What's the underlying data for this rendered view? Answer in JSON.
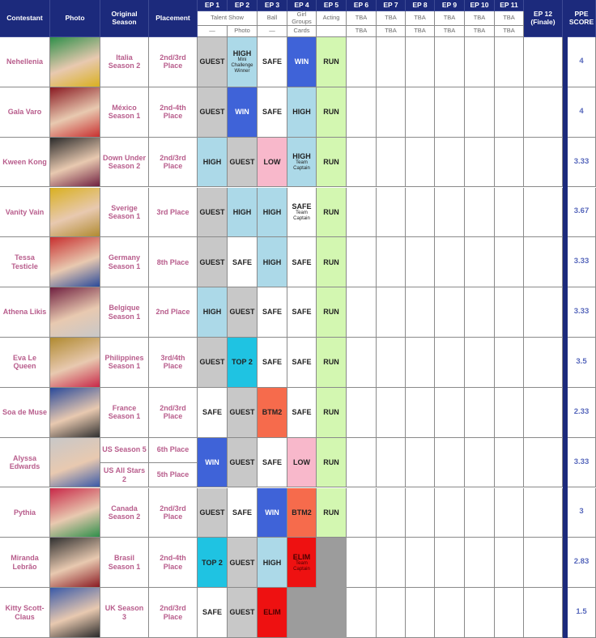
{
  "header": {
    "contestant": "Contestant",
    "photo": "Photo",
    "original_season": "Original Season",
    "placement": "Placement",
    "finale": "EP 12 (Finale)",
    "score": "PPE SCORE",
    "theme_groups": [
      {
        "theme": "Talent Show",
        "episodes": [
          {
            "label": "EP 1",
            "subtheme": "—"
          },
          {
            "label": "EP 2",
            "subtheme": "Photo"
          }
        ]
      },
      {
        "theme": "Ball",
        "episodes": [
          {
            "label": "EP 3",
            "subtheme": "—"
          }
        ]
      },
      {
        "theme": "Girl Groups",
        "episodes": [
          {
            "label": "EP 4",
            "subtheme": "Cards"
          }
        ]
      },
      {
        "theme": "Acting",
        "episodes": [
          {
            "label": "EP 5"
          }
        ]
      },
      {
        "theme": "TBA",
        "episodes": [
          {
            "label": "EP 6",
            "subtheme": "TBA"
          }
        ]
      },
      {
        "theme": "TBA",
        "episodes": [
          {
            "label": "EP 7",
            "subtheme": "TBA"
          }
        ]
      },
      {
        "theme": "TBA",
        "episodes": [
          {
            "label": "EP 8",
            "subtheme": "TBA"
          }
        ]
      },
      {
        "theme": "TBA",
        "episodes": [
          {
            "label": "EP 9",
            "subtheme": "TBA"
          }
        ]
      },
      {
        "theme": "TBA",
        "episodes": [
          {
            "label": "EP 10",
            "subtheme": "TBA"
          }
        ]
      },
      {
        "theme": "TBA",
        "episodes": [
          {
            "label": "EP 11",
            "subtheme": "TBA"
          }
        ]
      }
    ]
  },
  "result_styles": {
    "GUEST": {
      "fill": "#c8c8c8",
      "text": "#222222"
    },
    "HIGH": {
      "fill": "#acd9e8",
      "text": "#222222"
    },
    "WIN": {
      "fill": "#3f63d8",
      "text": "#ffffff"
    },
    "SAFE": {
      "fill": "#ffffff",
      "text": "#222222"
    },
    "LOW": {
      "fill": "#f8b8cb",
      "text": "#222222"
    },
    "BTM2": {
      "fill": "#f66b4c",
      "text": "#222222"
    },
    "TOP 2": {
      "fill": "#1fc3e2",
      "text": "#222222"
    },
    "ELIM": {
      "fill": "#ee1111",
      "text": "#4a0000"
    },
    "RUN": {
      "fill": "#d3f7b1",
      "text": "#222222"
    }
  },
  "eliminated_fill": "#9c9c9c",
  "contestants": [
    {
      "name": "Nehellenia",
      "seasons": [
        {
          "season": "Italia Season 2",
          "placement": "2nd/3rd Place"
        }
      ],
      "results": [
        {
          "result": "GUEST"
        },
        {
          "result": "HIGH",
          "note": "Mini Challenge Winner"
        },
        {
          "result": "SAFE"
        },
        {
          "result": "WIN"
        },
        {
          "result": "RUN"
        }
      ],
      "score": 4
    },
    {
      "name": "Gala Varo",
      "seasons": [
        {
          "season": "México Season 1",
          "placement": "2nd-4th Place"
        }
      ],
      "results": [
        {
          "result": "GUEST"
        },
        {
          "result": "WIN"
        },
        {
          "result": "SAFE"
        },
        {
          "result": "HIGH"
        },
        {
          "result": "RUN"
        }
      ],
      "score": 4
    },
    {
      "name": "Kween Kong",
      "seasons": [
        {
          "season": "Down Under Season 2",
          "placement": "2nd/3rd Place"
        }
      ],
      "results": [
        {
          "result": "HIGH"
        },
        {
          "result": "GUEST"
        },
        {
          "result": "LOW"
        },
        {
          "result": "HIGH",
          "note": "Team Captain"
        },
        {
          "result": "RUN"
        }
      ],
      "score": 3.33
    },
    {
      "name": "Vanity Vain",
      "seasons": [
        {
          "season": "Sverige Season 1",
          "placement": "3rd Place"
        }
      ],
      "results": [
        {
          "result": "GUEST"
        },
        {
          "result": "HIGH"
        },
        {
          "result": "HIGH"
        },
        {
          "result": "SAFE",
          "note": "Team Captain"
        },
        {
          "result": "RUN"
        }
      ],
      "score": 3.67
    },
    {
      "name": "Tessa Testicle",
      "seasons": [
        {
          "season": "Germany Season 1",
          "placement": "8th Place"
        }
      ],
      "results": [
        {
          "result": "GUEST"
        },
        {
          "result": "SAFE"
        },
        {
          "result": "HIGH"
        },
        {
          "result": "SAFE"
        },
        {
          "result": "RUN"
        }
      ],
      "score": 3.33
    },
    {
      "name": "Athena Likis",
      "seasons": [
        {
          "season": "Belgique Season 1",
          "placement": "2nd Place"
        }
      ],
      "results": [
        {
          "result": "HIGH"
        },
        {
          "result": "GUEST"
        },
        {
          "result": "SAFE"
        },
        {
          "result": "SAFE"
        },
        {
          "result": "RUN"
        }
      ],
      "score": 3.33
    },
    {
      "name": "Eva Le Queen",
      "seasons": [
        {
          "season": "Philippines Season 1",
          "placement": "3rd/4th Place"
        }
      ],
      "results": [
        {
          "result": "GUEST"
        },
        {
          "result": "TOP 2"
        },
        {
          "result": "SAFE"
        },
        {
          "result": "SAFE"
        },
        {
          "result": "RUN"
        }
      ],
      "score": 3.5
    },
    {
      "name": "Soa de Muse",
      "seasons": [
        {
          "season": "France Season 1",
          "placement": "2nd/3rd Place"
        }
      ],
      "results": [
        {
          "result": "SAFE"
        },
        {
          "result": "GUEST"
        },
        {
          "result": "BTM2"
        },
        {
          "result": "SAFE"
        },
        {
          "result": "RUN"
        }
      ],
      "score": 2.33
    },
    {
      "name": "Alyssa Edwards",
      "seasons": [
        {
          "season": "US Season 5",
          "placement": "6th Place"
        },
        {
          "season": "US All Stars 2",
          "placement": "5th Place"
        }
      ],
      "results": [
        {
          "result": "WIN"
        },
        {
          "result": "GUEST"
        },
        {
          "result": "SAFE"
        },
        {
          "result": "LOW"
        },
        {
          "result": "RUN"
        }
      ],
      "score": 3.33
    },
    {
      "name": "Pythia",
      "seasons": [
        {
          "season": "Canada Season 2",
          "placement": "2nd/3rd Place"
        }
      ],
      "results": [
        {
          "result": "GUEST"
        },
        {
          "result": "SAFE"
        },
        {
          "result": "WIN"
        },
        {
          "result": "BTM2"
        },
        {
          "result": "RUN"
        }
      ],
      "score": 3
    },
    {
      "name": "Miranda Lebrão",
      "seasons": [
        {
          "season": "Brasil Season 1",
          "placement": "2nd-4th Place"
        }
      ],
      "results": [
        {
          "result": "TOP 2"
        },
        {
          "result": "GUEST"
        },
        {
          "result": "HIGH"
        },
        {
          "result": "ELIM",
          "note": "Team Captain"
        }
      ],
      "score": 2.83
    },
    {
      "name": "Kitty Scott-Claus",
      "seasons": [
        {
          "season": "UK Season 3",
          "placement": "2nd/3rd Place"
        }
      ],
      "results": [
        {
          "result": "SAFE"
        },
        {
          "result": "GUEST"
        },
        {
          "result": "ELIM"
        }
      ],
      "score": 1.5
    }
  ]
}
